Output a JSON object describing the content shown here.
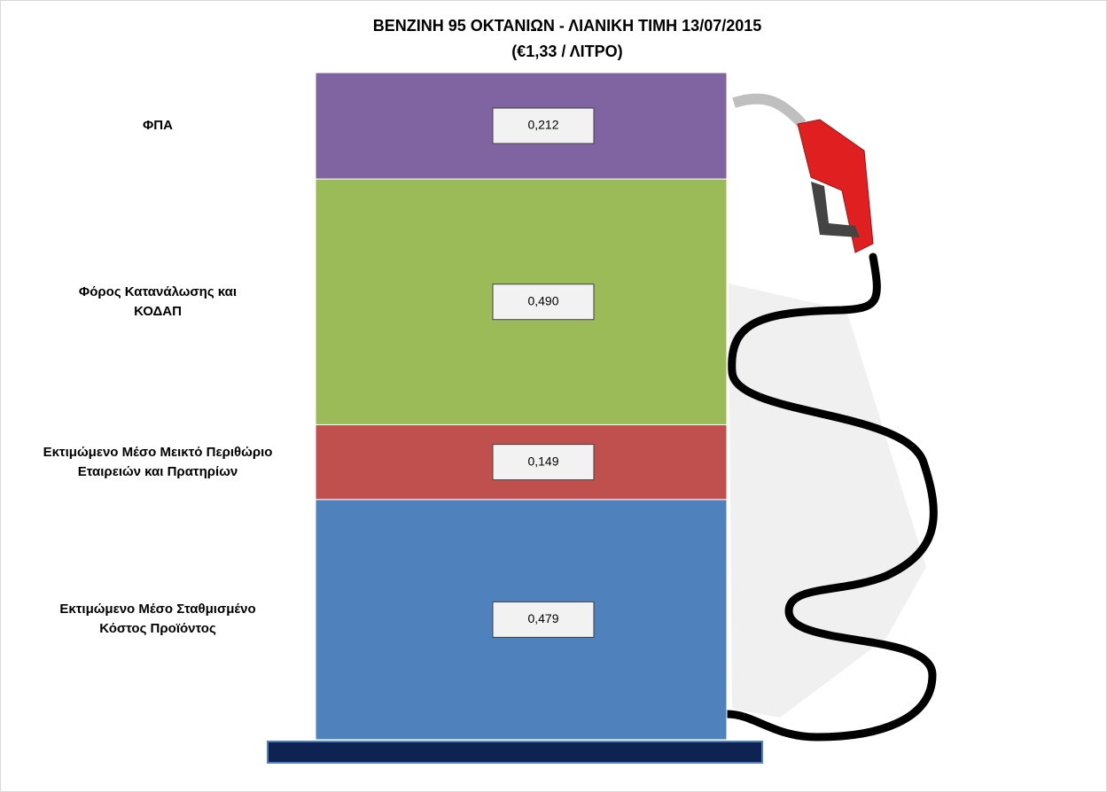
{
  "chart_data": {
    "type": "stacked-column",
    "title": "ΒΕΝΖΙΝΗ 95 ΟΚΤΑΝΙΩΝ - ΛΙΑΝΙΚΗ ΤΙΜΗ 13/07/2015",
    "subtitle": "(€1,33 / ΛΙΤΡΟ)",
    "series": [
      {
        "name": "Εκτιμώμενο Μέσο Σταθμισμένο Κόστος Προϊόντος",
        "color": "#4f81bd",
        "values": [
          0.479
        ],
        "value_labels": [
          "0,479"
        ]
      },
      {
        "name": "Εκτιμώμενο Μέσο Μεικτό Περιθώριο Εταιρειών και Πρατηρίων",
        "color": "#c0504d",
        "values": [
          0.149
        ],
        "value_labels": [
          "0,149"
        ]
      },
      {
        "name": "Φόρος Κατανάλωσης και ΚΟΔΑΠ",
        "color": "#9bbb59",
        "values": [
          0.49
        ],
        "value_labels": [
          "0,490"
        ]
      },
      {
        "name": "ΦΠΑ",
        "color": "#8064a2",
        "values": [
          0.212
        ],
        "value_labels": [
          "0,212"
        ]
      }
    ]
  }
}
